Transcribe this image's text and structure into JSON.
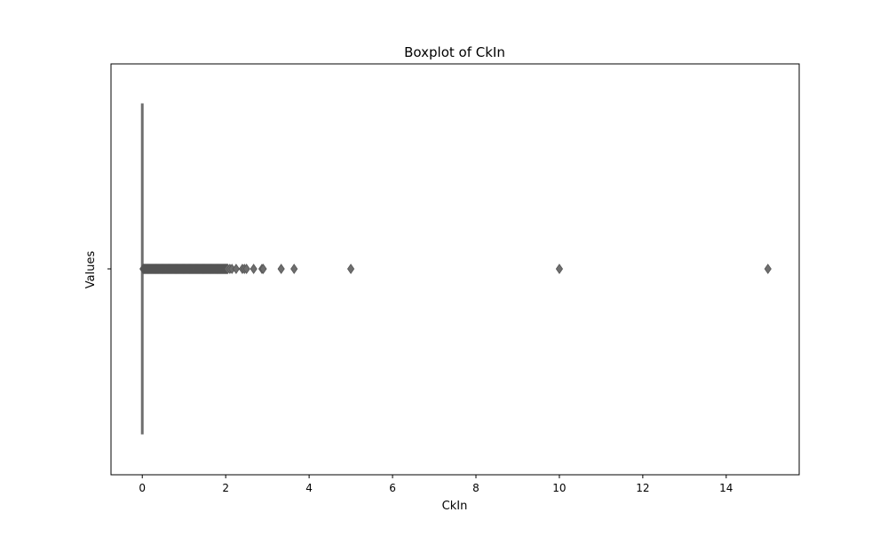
{
  "chart_data": {
    "type": "boxplot",
    "title": "Boxplot of CkIn",
    "xlabel": "CkIn",
    "ylabel": "Values",
    "xlim": [
      -0.75,
      15.75
    ],
    "xticks": [
      0,
      2,
      4,
      6,
      8,
      10,
      12,
      14
    ],
    "xtick_labels": [
      "0",
      "2",
      "4",
      "6",
      "8",
      "10",
      "12",
      "14"
    ],
    "yticks_count": 1,
    "grid": false,
    "legend": "none",
    "box": {
      "q1": 0,
      "median": 0,
      "q3": 0,
      "whisker_low": 0,
      "whisker_high": 0
    },
    "outlier_range": {
      "from": 0.02,
      "to": 2.05,
      "step": 0.01
    },
    "outliers": [
      2.1,
      2.15,
      2.25,
      2.4,
      2.45,
      2.5,
      2.67,
      2.87,
      2.9,
      3.33,
      3.64,
      5.0,
      10.0,
      15.0
    ],
    "colors": {
      "box": "#6e6e6e",
      "marker_fill": "#6e6e6e",
      "marker_edge": "#555555",
      "axes": "#000000"
    }
  }
}
